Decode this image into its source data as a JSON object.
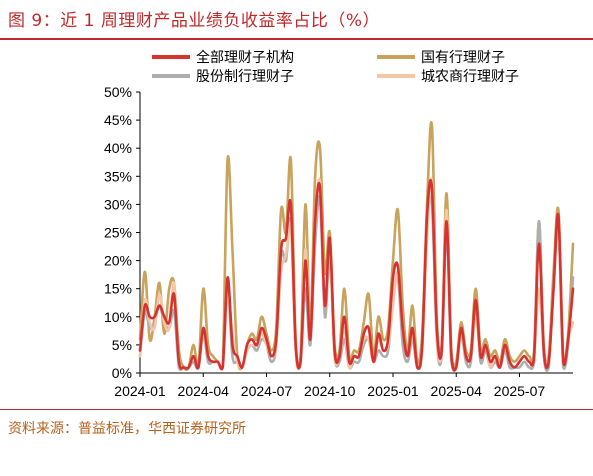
{
  "title": "图 9：近 1 周理财产品业绩负收益率占比（%）",
  "source": "资料来源：普益标准，华西证券研究所",
  "chart_data": {
    "type": "line",
    "title": "图 9：近 1 周理财产品业绩负收益率占比（%）",
    "ylim": [
      0,
      50
    ],
    "y_ticks": [
      "0%",
      "5%",
      "10%",
      "15%",
      "20%",
      "25%",
      "30%",
      "35%",
      "40%",
      "45%",
      "50%"
    ],
    "x_ticks": [
      "2024-01",
      "2024-04",
      "2024-07",
      "2024-10",
      "2025-01",
      "2025-04",
      "2025-07"
    ],
    "x_tick_positions": [
      0,
      13,
      26,
      39,
      52,
      65,
      78
    ],
    "grid": false,
    "legend": "top",
    "series": [
      {
        "name": "全部理财子机构",
        "color": "#d6322f",
        "values": [
          4,
          12,
          10,
          10,
          12,
          10,
          9,
          14,
          2,
          1,
          1,
          3,
          1,
          8,
          3,
          2,
          2,
          1,
          17,
          5,
          3,
          1,
          5,
          6,
          5,
          8,
          6,
          3,
          6,
          22,
          24,
          30,
          5,
          2,
          20,
          6,
          27,
          33,
          12,
          24,
          4,
          3,
          10,
          2,
          3,
          3,
          7,
          8,
          2,
          7,
          4,
          6,
          17,
          19,
          8,
          3,
          8,
          1,
          5,
          28,
          33,
          8,
          4,
          27,
          3,
          1,
          8,
          3,
          3,
          13,
          3,
          5,
          2,
          3,
          1,
          5,
          2,
          1,
          2,
          3,
          2,
          3,
          23,
          4,
          2,
          15,
          28,
          2,
          6,
          15
        ]
      },
      {
        "name": "国有行理财子",
        "color": "#c9a25b",
        "values": [
          6,
          18,
          6,
          10,
          16,
          7,
          15,
          16,
          4,
          1,
          1,
          5,
          1,
          15,
          5,
          3,
          2,
          1,
          38,
          22,
          3,
          1,
          5,
          7,
          6,
          10,
          7,
          4,
          8,
          29,
          25,
          38,
          6,
          3,
          30,
          8,
          35,
          40,
          18,
          25,
          5,
          4,
          15,
          3,
          4,
          4,
          9,
          14,
          3,
          10,
          6,
          8,
          20,
          29,
          12,
          4,
          12,
          2,
          7,
          30,
          44,
          10,
          5,
          32,
          4,
          2,
          9,
          4,
          4,
          15,
          4,
          6,
          3,
          4,
          2,
          6,
          3,
          2,
          3,
          4,
          3,
          4,
          27,
          5,
          3,
          18,
          29,
          3,
          7,
          23
        ]
      },
      {
        "name": "股份制行理财子",
        "color": "#aeaeae",
        "values": [
          3,
          11,
          8,
          9,
          12,
          9,
          8,
          11,
          1,
          1,
          1,
          2,
          1,
          7,
          2,
          2,
          2,
          1,
          15,
          3,
          2,
          1,
          4,
          5,
          4,
          6,
          5,
          2,
          5,
          21,
          20,
          27,
          4,
          2,
          15,
          5,
          23,
          31,
          10,
          21,
          3,
          2,
          6,
          1,
          2,
          2,
          5,
          6,
          2,
          4,
          3,
          4,
          13,
          17,
          5,
          2,
          6,
          1,
          4,
          26,
          30,
          6,
          3,
          25,
          2,
          1,
          7,
          2,
          2,
          12,
          2,
          4,
          1,
          2,
          1,
          4,
          1,
          1,
          1,
          2,
          1,
          2,
          27,
          3,
          1,
          16,
          26,
          1,
          5,
          17
        ]
      },
      {
        "name": "城农商行理财子",
        "color": "#f4c6a6",
        "values": [
          3,
          13,
          9,
          8,
          14,
          9,
          8,
          16,
          2,
          1,
          1,
          3,
          1,
          7,
          3,
          2,
          2,
          1,
          14,
          7,
          2,
          1,
          4,
          5,
          5,
          7,
          5,
          3,
          5,
          18,
          21,
          26,
          4,
          2,
          22,
          6,
          26,
          34,
          12,
          22,
          3,
          3,
          8,
          1,
          3,
          3,
          6,
          6,
          2,
          6,
          4,
          5,
          12,
          18,
          8,
          3,
          7,
          1,
          5,
          24,
          34,
          7,
          4,
          29,
          3,
          1,
          7,
          3,
          3,
          10,
          3,
          5,
          1,
          3,
          1,
          5,
          2,
          1,
          2,
          3,
          2,
          3,
          15,
          4,
          2,
          15,
          26,
          2,
          6,
          9
        ]
      }
    ]
  }
}
